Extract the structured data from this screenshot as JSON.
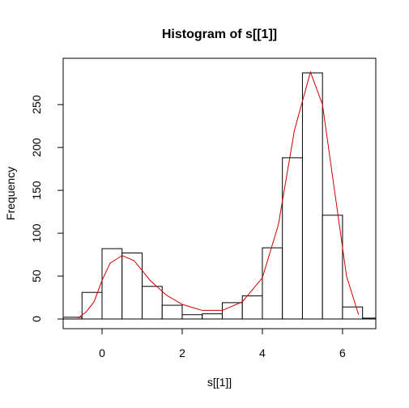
{
  "chart_data": {
    "type": "histogram",
    "title": "Histogram of s[[1]]",
    "x_label": "s[[1]]",
    "y_label": "Frequency",
    "bins": [
      -1,
      -0.5,
      0,
      0.5,
      1,
      1.5,
      2,
      2.5,
      3,
      3.5,
      4,
      4.5,
      5,
      5.5,
      6,
      6.5,
      7
    ],
    "values": [
      2,
      31,
      82,
      77,
      38,
      16,
      5,
      6,
      19,
      27,
      83,
      188,
      287,
      121,
      14,
      1
    ],
    "bar_fill": "#ffffff",
    "bar_edge": "#000000",
    "density": {
      "color": "#cc0000",
      "x": [
        -0.6,
        -0.4,
        -0.2,
        0,
        0.2,
        0.5,
        0.8,
        1.2,
        1.6,
        2,
        2.5,
        3,
        3.5,
        4,
        4.4,
        4.8,
        5.2,
        5.5,
        5.8,
        6.1,
        6.4
      ],
      "values": [
        1,
        8,
        20,
        45,
        65,
        74,
        68,
        45,
        28,
        17,
        10,
        10,
        20,
        48,
        110,
        220,
        288,
        250,
        150,
        50,
        5
      ]
    },
    "xlim": [
      -0.97,
      6.83
    ],
    "ylim": [
      -11.3,
      304
    ],
    "xticks": [
      0,
      2,
      4,
      6
    ],
    "yticks": [
      0,
      50,
      100,
      150,
      200,
      250
    ]
  }
}
